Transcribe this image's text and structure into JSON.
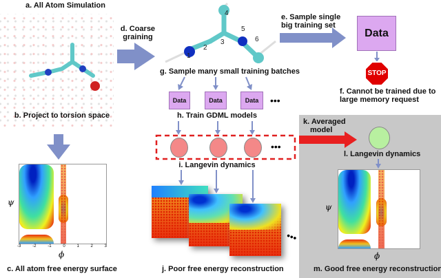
{
  "labels": {
    "a": "a. All Atom Simulation",
    "b": "b. Project to torsion space",
    "c": "c. All atom free energy surface",
    "d1": "d. Coarse",
    "d2": "graining",
    "e1": "e. Sample single",
    "e2": "big training set",
    "f1": "f. Cannot be trained due to",
    "f2": "large memory request",
    "g": "g. Sample many small training batches",
    "h": "h. Train GDML models",
    "i": "i. Langevin dynamics",
    "j": "j. Poor free energy reconstruction",
    "k1": "k. Averaged",
    "k2": "model",
    "l": "l. Langevin dynamics",
    "m": "m. Good free energy reconstruction"
  },
  "data_box": "Data",
  "stop_sign": "STOP",
  "ellipsis": "•••",
  "atom_numbers": [
    "1",
    "2",
    "3",
    "4",
    "5",
    "6"
  ],
  "axes": {
    "x": "ϕ",
    "y": "ψ",
    "ticks": [
      "-3",
      "-2",
      "-1",
      "0",
      "1",
      "2",
      "3"
    ]
  },
  "colors": {
    "arrow": "#8090c8",
    "data_box": "#dca8f0",
    "model_circle": "#f48888",
    "averaged_circle": "#b8f0a0",
    "stop": "#e00000",
    "dashed_border": "#e02020",
    "red_arrow": "#e82020",
    "panel": "#c8c8c8"
  }
}
